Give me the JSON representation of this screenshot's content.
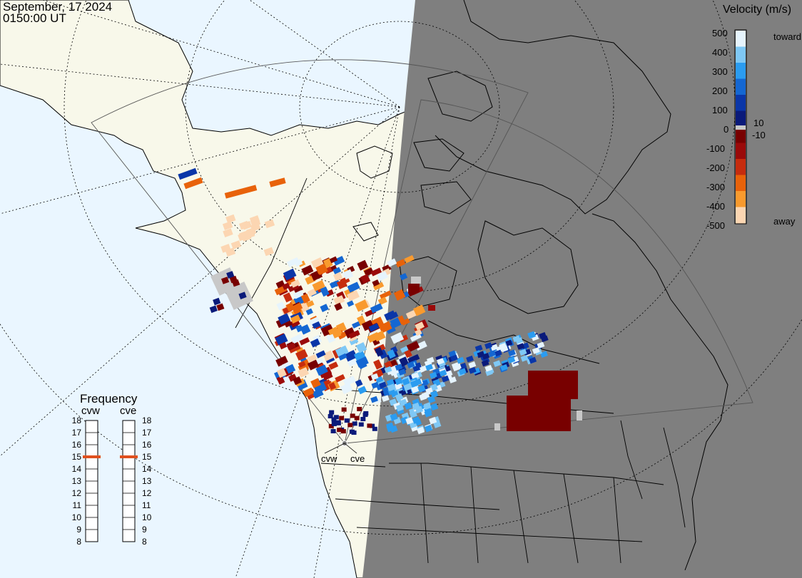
{
  "header": {
    "date": "September, 17 2024",
    "time": "0150:00 UT"
  },
  "colors": {
    "ocean": "#eaf6ff",
    "land_day": "#f8f8ea",
    "night": "#7f7f7f",
    "ground_scatter": "#c8c8c8",
    "outline": "#000000"
  },
  "colorbar": {
    "title": "Velocity (m/s)",
    "ticks": [
      "500",
      "400",
      "300",
      "200",
      "100",
      "10",
      "0",
      "-10",
      "-100",
      "-200",
      "-300",
      "-400",
      "-500"
    ],
    "label_top": "toward",
    "label_bottom": "away",
    "range": [
      -500,
      500
    ]
  },
  "frequency": {
    "title": "Frequency",
    "radars": [
      {
        "name": "cvw",
        "freq_mhz": 15
      },
      {
        "name": "cve",
        "freq_mhz": 15
      }
    ],
    "ticks": [
      "18",
      "17",
      "16",
      "15",
      "14",
      "13",
      "12",
      "11",
      "10",
      "9",
      "8"
    ],
    "range": [
      8,
      18
    ],
    "marker_color": "#e0501e"
  },
  "sites": [
    {
      "label": "cvw"
    },
    {
      "label": "cve"
    }
  ],
  "chart_data": {
    "type": "heatmap",
    "quantity": "Line-of-sight velocity",
    "units": "m/s",
    "range": [
      -500,
      500
    ],
    "colorbar": [
      {
        "v": 500,
        "c": "#e6f4fd"
      },
      {
        "v": 400,
        "c": "#7fc8f5"
      },
      {
        "v": 300,
        "c": "#2b9cf0"
      },
      {
        "v": 200,
        "c": "#1467d2"
      },
      {
        "v": 100,
        "c": "#0a36a8"
      },
      {
        "v": 10,
        "c": "#0a1a7a"
      },
      {
        "v": -10,
        "c": "#780000"
      },
      {
        "v": -100,
        "c": "#9a0a0a"
      },
      {
        "v": -200,
        "c": "#c62c0e"
      },
      {
        "v": -300,
        "c": "#e8620a"
      },
      {
        "v": -400,
        "c": "#f99a2e"
      },
      {
        "v": -500,
        "c": "#fcd6b2"
      }
    ]
  }
}
